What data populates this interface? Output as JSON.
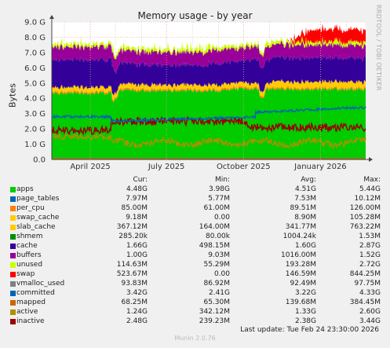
{
  "chart_data": {
    "type": "area",
    "title": "Memory usage - by year",
    "ylabel": "Bytes",
    "vertical_label": "RRDTOOL / TOBI OETIKER",
    "yticks": [
      "0.0",
      "1.0 G",
      "2.0 G",
      "3.0 G",
      "4.0 G",
      "5.0 G",
      "6.0 G",
      "7.0 G",
      "8.0 G",
      "9.0 G"
    ],
    "ylim": [
      0,
      9.0
    ],
    "xticks": [
      "April 2025",
      "July 2025",
      "October 2025",
      "January 2026"
    ],
    "x_range": [
      "2025-02-14",
      "2026-02-24"
    ],
    "xtick_dates": [
      "2025-04-01",
      "2025-07-01",
      "2025-10-01",
      "2026-01-01"
    ],
    "grid": true,
    "columns": [
      "Cur:",
      "Min:",
      "Avg:",
      "Max:"
    ],
    "series": [
      {
        "name": "apps",
        "color": "#00cc00",
        "cur": "4.48G",
        "min": "3.98G",
        "avg": "4.51G",
        "max": "5.44G",
        "draw": "area"
      },
      {
        "name": "page_tables",
        "color": "#0066b3",
        "cur": "7.97M",
        "min": "5.77M",
        "avg": "7.53M",
        "max": "10.12M",
        "draw": "area"
      },
      {
        "name": "per_cpu",
        "color": "#ff8000",
        "cur": "85.00M",
        "min": "61.00M",
        "avg": "89.51M",
        "max": "126.00M",
        "draw": "area"
      },
      {
        "name": "swap_cache",
        "color": "#ffcc00",
        "cur": "9.18M",
        "min": "0.00",
        "avg": "8.90M",
        "max": "105.28M",
        "draw": "area"
      },
      {
        "name": "slab_cache",
        "color": "#ffcc00",
        "cur": "367.12M",
        "min": "164.00M",
        "avg": "341.77M",
        "max": "763.22M",
        "draw": "area"
      },
      {
        "name": "shmem",
        "color": "#008f00",
        "cur": "285.20k",
        "min": "80.00k",
        "avg": "1004.24k",
        "max": "1.53M",
        "draw": "area"
      },
      {
        "name": "cache",
        "color": "#330099",
        "cur": "1.66G",
        "min": "498.15M",
        "avg": "1.60G",
        "max": "2.87G",
        "draw": "area"
      },
      {
        "name": "buffers",
        "color": "#990099",
        "cur": "1.00G",
        "min": "9.03M",
        "avg": "1016.00M",
        "max": "1.52G",
        "draw": "area"
      },
      {
        "name": "unused",
        "color": "#ccff00",
        "cur": "114.63M",
        "min": "55.29M",
        "avg": "193.28M",
        "max": "2.72G",
        "draw": "area"
      },
      {
        "name": "swap",
        "color": "#ff0000",
        "cur": "523.67M",
        "min": "0.00",
        "avg": "146.59M",
        "max": "844.25M",
        "draw": "area"
      },
      {
        "name": "vmalloc_used",
        "color": "#808080",
        "cur": "93.83M",
        "min": "86.92M",
        "avg": "92.49M",
        "max": "97.75M",
        "draw": "line"
      },
      {
        "name": "committed",
        "color": "#0066b3",
        "cur": "3.42G",
        "min": "2.41G",
        "avg": "3.22G",
        "max": "4.33G",
        "draw": "line"
      },
      {
        "name": "mapped",
        "color": "#cc6600",
        "cur": "68.25M",
        "min": "65.30M",
        "avg": "139.68M",
        "max": "384.45M",
        "draw": "line"
      },
      {
        "name": "active",
        "color": "#b38f00",
        "cur": "1.24G",
        "min": "342.12M",
        "avg": "1.33G",
        "max": "2.60G",
        "draw": "line"
      },
      {
        "name": "inactive",
        "color": "#990000",
        "cur": "2.48G",
        "min": "239.23M",
        "avg": "2.38G",
        "max": "3.44G",
        "draw": "line"
      }
    ],
    "last_update": "Last update: Tue Feb 24 23:30:00 2026",
    "footer": "Munin 2.0.76"
  }
}
